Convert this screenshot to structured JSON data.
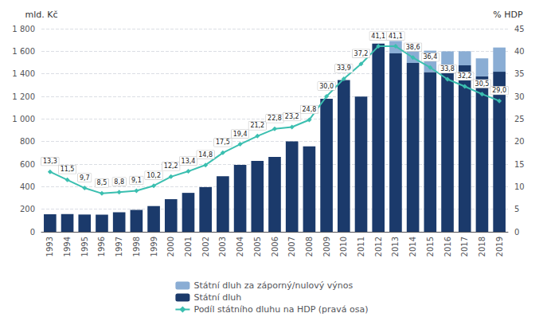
{
  "chart_data": {
    "type": "bar",
    "stacked": true,
    "grid": true,
    "legend": "bottom",
    "ylabel": "mld. Kč",
    "y2label": "% HDP",
    "categories": [
      "1993",
      "1994",
      "1995",
      "1996",
      "1997",
      "1998",
      "1999",
      "2000",
      "2001",
      "2002",
      "2003",
      "2004",
      "2005",
      "2006",
      "2007",
      "2008",
      "2009",
      "2010",
      "2011",
      "2012",
      "2013",
      "2014",
      "2015",
      "2016",
      "2017",
      "2018",
      "2019"
    ],
    "ylim": [
      0,
      1800
    ],
    "yticks": [
      0,
      200,
      400,
      600,
      800,
      {
        "value": 1000,
        "label": "1 000"
      },
      {
        "value": 1200,
        "label": "1 200"
      },
      {
        "value": 1400,
        "label": "1 400"
      },
      {
        "value": 1600,
        "label": "1 600"
      },
      {
        "value": 1800,
        "label": "1 800"
      }
    ],
    "y2lim": [
      0,
      45
    ],
    "y2ticks": [
      0,
      5,
      10,
      15,
      20,
      25,
      30,
      35,
      40,
      45
    ],
    "series": [
      {
        "name": "Státní dluh",
        "type": "bar",
        "color": "#1b3a6b",
        "values": [
          155,
          157,
          153,
          152,
          173,
          194,
          228,
          289,
          345,
          396,
          493,
          593,
          629,
          664,
          802,
          757,
          1178,
          1344,
          1199,
          1667,
          1581,
          1497,
          1415,
          1444,
          1475,
          1377,
          1418
        ]
      },
      {
        "name": "Státní dluh za záporný/nulový výnos",
        "type": "bar",
        "color": "#8aadd4",
        "values": [
          0,
          0,
          0,
          0,
          0,
          0,
          0,
          0,
          0,
          0,
          0,
          0,
          0,
          0,
          0,
          0,
          0,
          0,
          0,
          0,
          110,
          165,
          190,
          155,
          125,
          160,
          215
        ]
      },
      {
        "name": "Podíl státního dluhu na HDP (pravá osa)",
        "type": "line",
        "axis": "y2",
        "color": "#3bbfb0",
        "marker": "diamond",
        "data_labels": true,
        "values": [
          13.3,
          11.5,
          9.7,
          8.5,
          8.8,
          9.1,
          10.2,
          12.2,
          13.4,
          14.8,
          17.5,
          19.4,
          21.2,
          22.8,
          23.2,
          24.8,
          30.0,
          33.9,
          37.2,
          41.1,
          41.1,
          38.6,
          36.4,
          33.8,
          32.2,
          30.5,
          29.0
        ],
        "value_labels": [
          "13,3",
          "11,5",
          "9,7",
          "8,5",
          "8,8",
          "9,1",
          "10,2",
          "12,2",
          "13,4",
          "14,8",
          "17,5",
          "19,4",
          "21,2",
          "22,8",
          "23,2",
          "24,8",
          "30,0",
          "33,9",
          "37,2",
          "41,1",
          "41,1",
          "38,6",
          "36,4",
          "33,8",
          "32,2",
          "30,5",
          "29,0"
        ]
      }
    ]
  }
}
